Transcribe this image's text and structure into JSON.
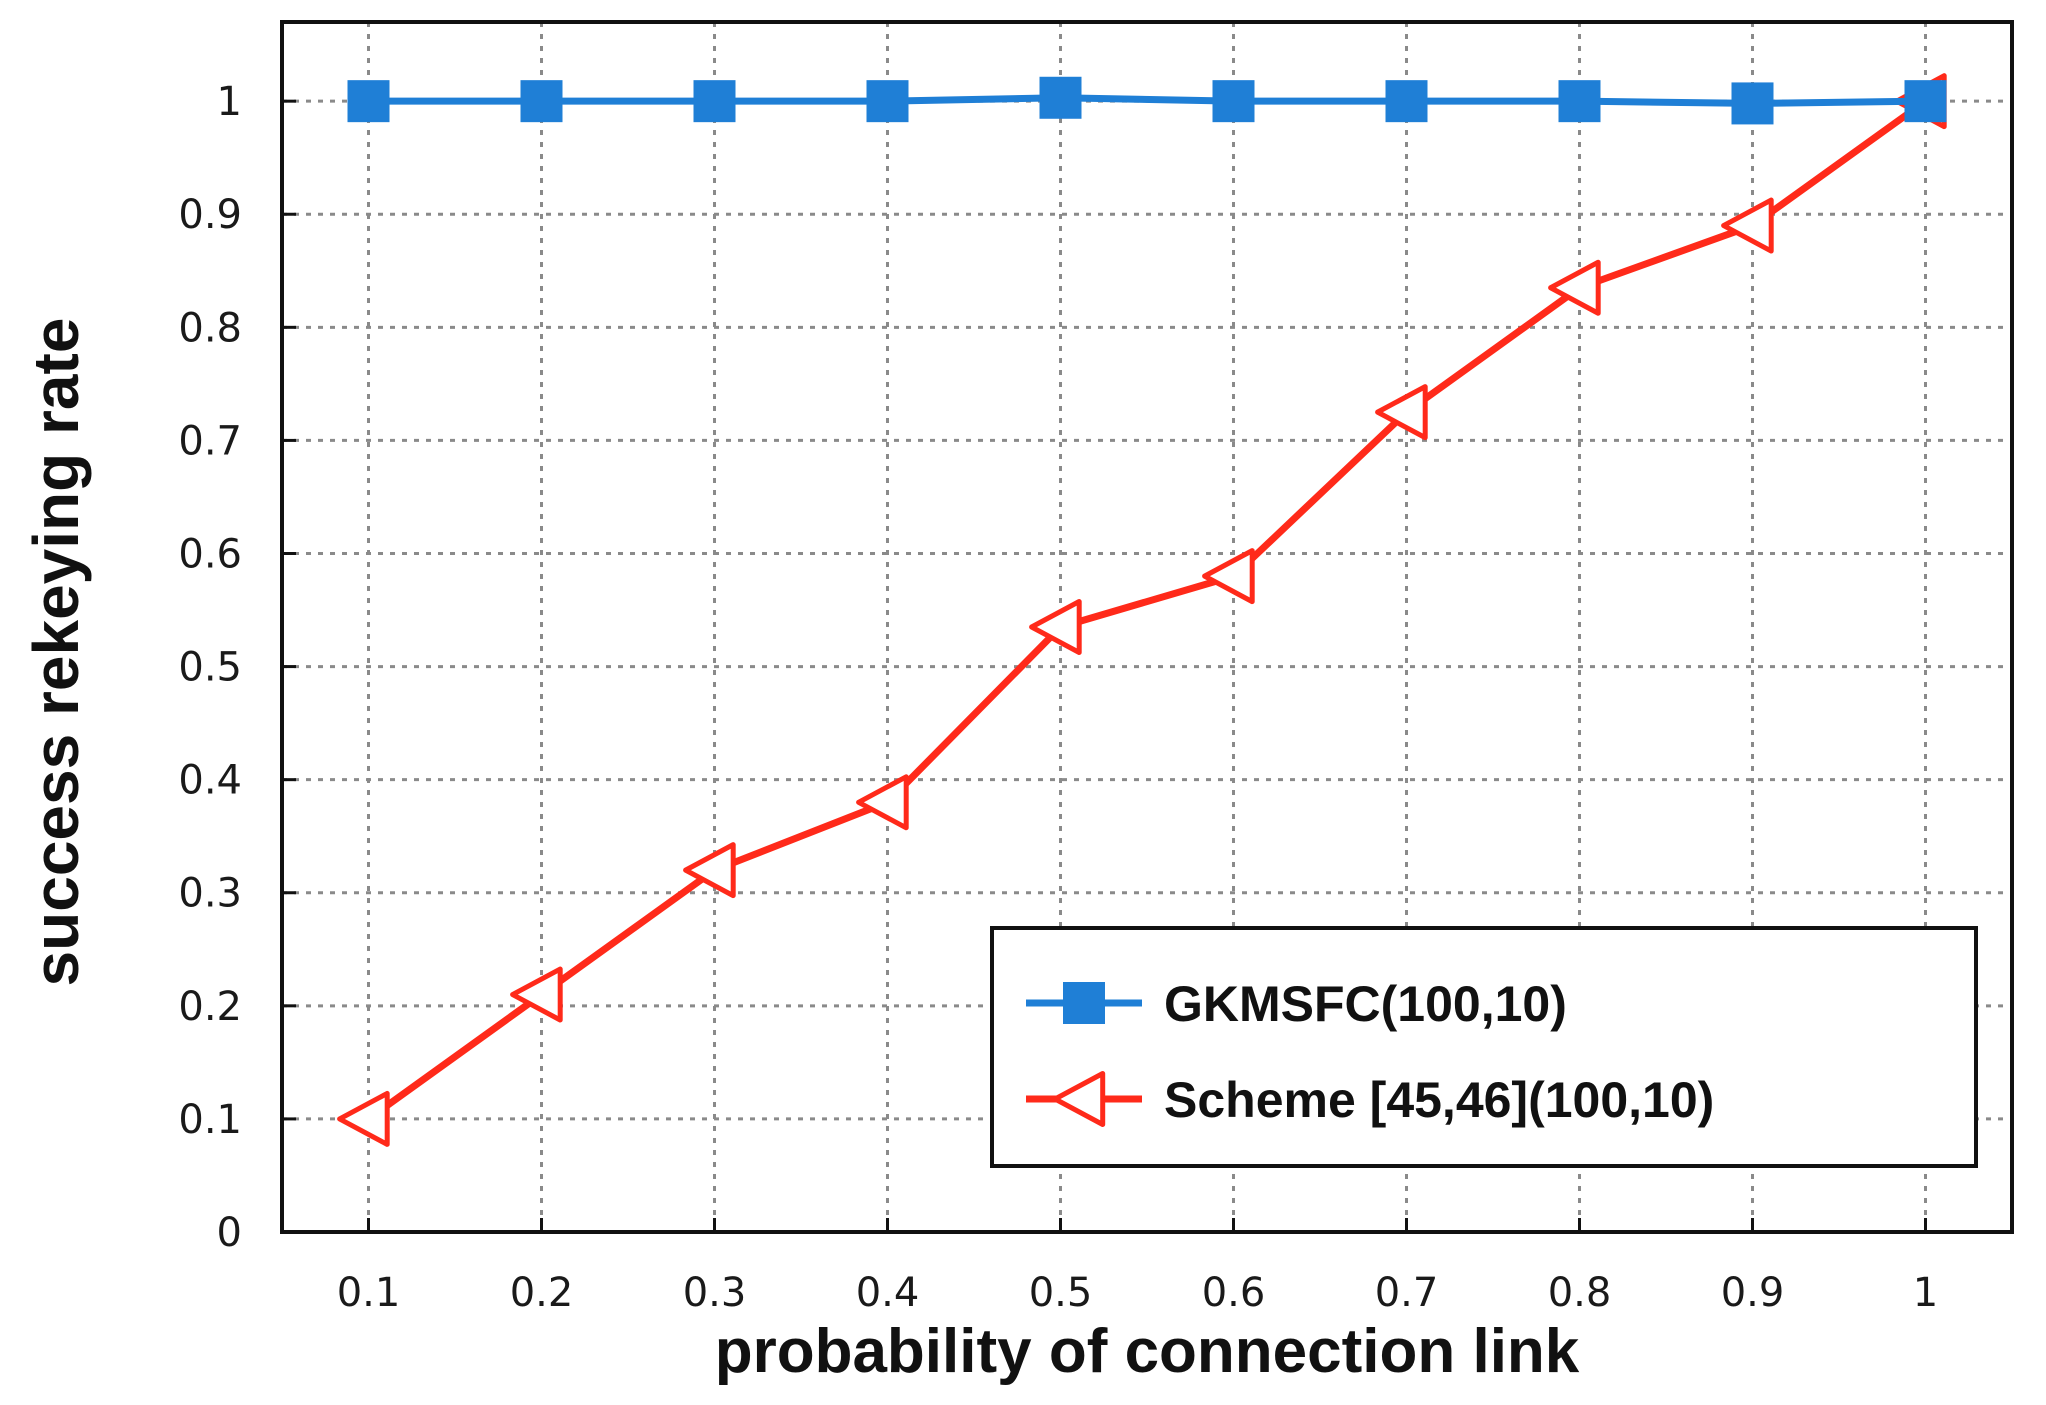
{
  "chart_data": {
    "type": "line",
    "xlabel": "probability of connection link",
    "ylabel": "success rekeying rate",
    "x": [
      0.1,
      0.2,
      0.3,
      0.4,
      0.5,
      0.6,
      0.7,
      0.8,
      0.9,
      1
    ],
    "x_tick_labels": [
      "0.1",
      "0.2",
      "0.3",
      "0.4",
      "0.5",
      "0.6",
      "0.7",
      "0.8",
      "0.9",
      "1"
    ],
    "xlim": [
      0.05,
      1.05
    ],
    "ylim": [
      0,
      1.07
    ],
    "y_ticks": [
      0,
      0.1,
      0.2,
      0.3,
      0.4,
      0.5,
      0.6,
      0.7,
      0.8,
      0.9,
      1
    ],
    "y_tick_labels": [
      "0",
      "0.1",
      "0.2",
      "0.3",
      "0.4",
      "0.5",
      "0.6",
      "0.7",
      "0.8",
      "0.9",
      "1"
    ],
    "grid": true,
    "legend_position": "bottom-right",
    "series": [
      {
        "name": "GKMSFC(100,10)",
        "color": "#1f7fd6",
        "marker": "square",
        "values": [
          1.0,
          1.0,
          1.0,
          1.0,
          1.003,
          1.0,
          1.0,
          1.0,
          0.998,
          1.0
        ]
      },
      {
        "name": "Scheme [45,46](100,10)",
        "color": "#ff2a1a",
        "marker": "triangle-left",
        "values": [
          0.1,
          0.21,
          0.32,
          0.38,
          0.535,
          0.58,
          0.725,
          0.835,
          0.89,
          1.0
        ]
      }
    ]
  }
}
